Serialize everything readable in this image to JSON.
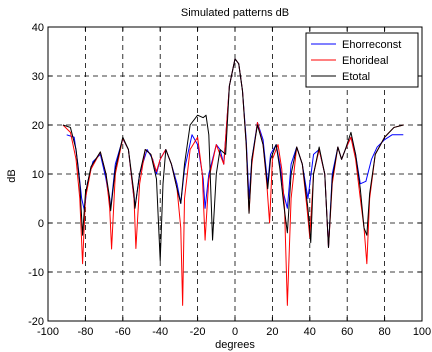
{
  "chart_data": {
    "type": "line",
    "title": "Simulated patterns dB",
    "xlabel": "degrees",
    "ylabel": "dB",
    "xlim": [
      -100,
      100
    ],
    "ylim": [
      -20,
      40
    ],
    "xticks": [
      -100,
      -80,
      -60,
      -40,
      -20,
      0,
      20,
      40,
      60,
      80,
      100
    ],
    "yticks": [
      -20,
      -10,
      0,
      10,
      20,
      30,
      40
    ],
    "grid": true,
    "legend_position": "top-right",
    "series": [
      {
        "name": "Ehorreconst",
        "color": "#0000ff",
        "points": [
          [
            -90,
            18
          ],
          [
            -86,
            17.5
          ],
          [
            -84,
            12
          ],
          [
            -82,
            5
          ],
          [
            -80.5,
            2.5
          ],
          [
            -79,
            8
          ],
          [
            -76,
            12.5
          ],
          [
            -72,
            14
          ],
          [
            -69,
            9
          ],
          [
            -66.5,
            3
          ],
          [
            -64,
            12
          ],
          [
            -60,
            17.2
          ],
          [
            -57,
            15
          ],
          [
            -53.5,
            3.2
          ],
          [
            -51,
            10
          ],
          [
            -47,
            15
          ],
          [
            -44,
            13
          ],
          [
            -42,
            10
          ],
          [
            -40,
            13
          ],
          [
            -37,
            15
          ],
          [
            -34,
            12
          ],
          [
            -31,
            8
          ],
          [
            -29,
            4
          ],
          [
            -27,
            11
          ],
          [
            -23,
            18
          ],
          [
            -20,
            16
          ],
          [
            -17,
            9
          ],
          [
            -16,
            3
          ],
          [
            -14,
            10
          ],
          [
            -10,
            16
          ],
          [
            -8,
            15
          ],
          [
            -6,
            12
          ],
          [
            -3,
            28
          ],
          [
            0,
            33.5
          ],
          [
            2,
            32.5
          ],
          [
            4,
            27
          ],
          [
            6,
            17
          ],
          [
            7.5,
            5
          ],
          [
            9,
            13
          ],
          [
            12,
            20.5
          ],
          [
            15,
            17
          ],
          [
            17.5,
            8
          ],
          [
            19,
            14
          ],
          [
            22,
            16
          ],
          [
            24,
            12
          ],
          [
            26,
            6
          ],
          [
            28,
            3
          ],
          [
            30,
            12
          ],
          [
            33,
            15.5
          ],
          [
            36,
            12
          ],
          [
            39,
            5
          ],
          [
            42,
            14
          ],
          [
            45,
            15
          ],
          [
            48,
            10
          ],
          [
            50,
            -5
          ],
          [
            52,
            10
          ],
          [
            55,
            15.5
          ],
          [
            57,
            13
          ],
          [
            59,
            15
          ],
          [
            62,
            17.5
          ],
          [
            64.5,
            14
          ],
          [
            67,
            8
          ],
          [
            70,
            8.5
          ],
          [
            73,
            13
          ],
          [
            76,
            15.5
          ],
          [
            80,
            17
          ],
          [
            84,
            18
          ],
          [
            90,
            18
          ]
        ]
      },
      {
        "name": "Ehorideal",
        "color": "#ff0000",
        "points": [
          [
            -92,
            20
          ],
          [
            -88,
            18.5
          ],
          [
            -85,
            13
          ],
          [
            -83,
            5
          ],
          [
            -81.5,
            -8.3
          ],
          [
            -80,
            5
          ],
          [
            -77,
            11
          ],
          [
            -72,
            14.5
          ],
          [
            -69,
            10
          ],
          [
            -67,
            3
          ],
          [
            -66,
            -5.3
          ],
          [
            -64,
            10
          ],
          [
            -60,
            17.3
          ],
          [
            -57,
            15
          ],
          [
            -54,
            5
          ],
          [
            -53,
            -5.2
          ],
          [
            -51,
            8
          ],
          [
            -48,
            15
          ],
          [
            -45,
            14
          ],
          [
            -42,
            10.5
          ],
          [
            -40,
            13
          ],
          [
            -37,
            15
          ],
          [
            -34,
            12
          ],
          [
            -31,
            7
          ],
          [
            -29,
            -1
          ],
          [
            -28,
            -16.8
          ],
          [
            -27,
            5
          ],
          [
            -24,
            15
          ],
          [
            -20,
            17.5
          ],
          [
            -17.5,
            10
          ],
          [
            -16,
            -3.5
          ],
          [
            -14,
            9
          ],
          [
            -10,
            16
          ],
          [
            -8,
            14
          ],
          [
            -6,
            12
          ],
          [
            -3,
            28
          ],
          [
            0,
            33.5
          ],
          [
            2,
            32.5
          ],
          [
            4,
            27
          ],
          [
            6,
            16
          ],
          [
            7.5,
            2
          ],
          [
            9,
            12
          ],
          [
            12,
            20.5
          ],
          [
            15,
            16
          ],
          [
            17,
            8
          ],
          [
            18.5,
            0
          ],
          [
            20,
            13
          ],
          [
            23,
            16
          ],
          [
            25,
            11
          ],
          [
            26.5,
            3
          ],
          [
            28,
            -16.8
          ],
          [
            30,
            5
          ],
          [
            33,
            15.5
          ],
          [
            36,
            12
          ],
          [
            38.5,
            3
          ],
          [
            40,
            -3
          ],
          [
            42,
            10
          ],
          [
            45,
            15
          ],
          [
            48,
            10
          ],
          [
            50,
            -5
          ],
          [
            52,
            8
          ],
          [
            55,
            15.5
          ],
          [
            57,
            13
          ],
          [
            59,
            15
          ],
          [
            62,
            17.5
          ],
          [
            64.5,
            13
          ],
          [
            67,
            5
          ],
          [
            69,
            -1
          ],
          [
            70.5,
            -8.3
          ],
          [
            72,
            5
          ],
          [
            75,
            14
          ],
          [
            80,
            17.5
          ],
          [
            85,
            19.5
          ],
          [
            90,
            20
          ]
        ]
      },
      {
        "name": "Etotal",
        "color": "#000000",
        "points": [
          [
            -92,
            20
          ],
          [
            -88,
            19.5
          ],
          [
            -85,
            15
          ],
          [
            -83,
            8
          ],
          [
            -81.5,
            -2.5
          ],
          [
            -80,
            6
          ],
          [
            -77,
            11.5
          ],
          [
            -72,
            14.5
          ],
          [
            -69,
            10
          ],
          [
            -67,
            5
          ],
          [
            -66.5,
            2.5
          ],
          [
            -64,
            11
          ],
          [
            -60,
            17.5
          ],
          [
            -57,
            15
          ],
          [
            -54,
            6
          ],
          [
            -53.5,
            3
          ],
          [
            -51,
            10
          ],
          [
            -48,
            15
          ],
          [
            -45,
            14
          ],
          [
            -42,
            9
          ],
          [
            -40,
            -7.7
          ],
          [
            -38.5,
            8
          ],
          [
            -37,
            15
          ],
          [
            -34,
            12
          ],
          [
            -31,
            7
          ],
          [
            -29,
            4
          ],
          [
            -27,
            12
          ],
          [
            -24,
            20
          ],
          [
            -20,
            22
          ],
          [
            -17,
            21.5
          ],
          [
            -15.5,
            22
          ],
          [
            -14,
            18
          ],
          [
            -12,
            -3.5
          ],
          [
            -10,
            10
          ],
          [
            -8,
            15
          ],
          [
            -5,
            14
          ],
          [
            -3,
            28
          ],
          [
            0,
            33.5
          ],
          [
            2,
            32.5
          ],
          [
            4,
            27
          ],
          [
            6,
            16
          ],
          [
            7.5,
            2
          ],
          [
            9,
            13
          ],
          [
            12,
            20
          ],
          [
            15,
            16
          ],
          [
            17.5,
            7
          ],
          [
            19,
            13
          ],
          [
            22,
            16
          ],
          [
            24,
            11
          ],
          [
            26,
            4
          ],
          [
            28,
            -2
          ],
          [
            30,
            10
          ],
          [
            33,
            15.5
          ],
          [
            36,
            12
          ],
          [
            39,
            3
          ],
          [
            40.5,
            -4
          ],
          [
            42,
            10
          ],
          [
            45,
            15.5
          ],
          [
            48,
            10
          ],
          [
            50,
            -5
          ],
          [
            52,
            9
          ],
          [
            55,
            15.5
          ],
          [
            57,
            13
          ],
          [
            59,
            15
          ],
          [
            62,
            18.5
          ],
          [
            64.5,
            14
          ],
          [
            67,
            7
          ],
          [
            69,
            -1
          ],
          [
            70.5,
            -2.5
          ],
          [
            72,
            6
          ],
          [
            75,
            14
          ],
          [
            80,
            17.5
          ],
          [
            85,
            19.5
          ],
          [
            90,
            20
          ]
        ]
      }
    ]
  }
}
